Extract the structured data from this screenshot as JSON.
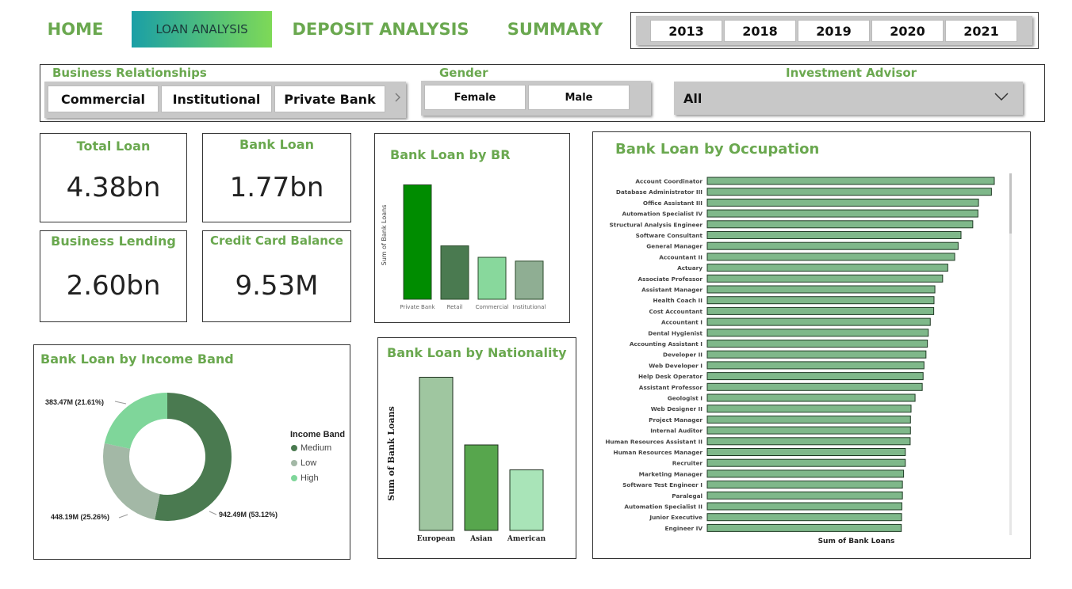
{
  "nav": {
    "home": "HOME",
    "loan_analysis": "LOAN ANALYSIS",
    "deposit_analysis": "DEPOSIT ANALYSIS",
    "summary": "SUMMARY"
  },
  "years": [
    "2013",
    "2018",
    "2019",
    "2020",
    "2021"
  ],
  "filters": {
    "business_relationships": {
      "label": "Business Relationships",
      "options": [
        "Commercial",
        "Institutional",
        "Private Bank"
      ]
    },
    "gender": {
      "label": "Gender",
      "options": [
        "Female",
        "Male"
      ]
    },
    "investment_advisor": {
      "label": "Investment Advisor",
      "value": "All"
    }
  },
  "kpis": {
    "total_loan": {
      "title": "Total Loan",
      "value": "4.38bn"
    },
    "bank_loan": {
      "title": "Bank Loan",
      "value": "1.77bn"
    },
    "business_lending": {
      "title": "Business Lending",
      "value": "2.60bn"
    },
    "credit_card_balance": {
      "title": "Credit Card Balance",
      "value": "9.53M"
    }
  },
  "chart_data": [
    {
      "id": "by_br",
      "type": "bar",
      "title": "Bank Loan by BR",
      "ylabel": "Sum of Bank Loans",
      "xlabel": "",
      "categories": [
        "Private Bank",
        "Retail",
        "Commercial",
        "Institutional"
      ],
      "values": [
        0.6,
        0.28,
        0.22,
        0.2
      ],
      "colors": [
        "#008c00",
        "#4a7a50",
        "#88d89c",
        "#8fae93"
      ]
    },
    {
      "id": "by_income_band",
      "type": "pie",
      "title": "Bank Loan by Income Band",
      "legend_title": "Income Band",
      "legend_position": "right",
      "labels": [
        "Medium",
        "Low",
        "High"
      ],
      "values": [
        942.49,
        448.19,
        383.47
      ],
      "percents": [
        53.12,
        25.26,
        21.61
      ],
      "data_labels": [
        "942.49M (53.12%)",
        "448.19M (25.26%)",
        "383.47M (21.61%)"
      ],
      "colors": [
        "#4a7a50",
        "#a3b8a6",
        "#7fd69a"
      ]
    },
    {
      "id": "by_nationality",
      "type": "bar",
      "title": "Bank Loan by Nationality",
      "ylabel": "Sum of Bank Loans",
      "xlabel": "",
      "categories": [
        "European",
        "Asian",
        "American"
      ],
      "values": [
        0.86,
        0.48,
        0.34
      ],
      "colors": [
        "#9fc6a0",
        "#57a64d",
        "#a9e4b8"
      ]
    },
    {
      "id": "by_occupation",
      "type": "bar",
      "orientation": "horizontal",
      "title": "Bank Loan by Occupation",
      "xlabel": "Sum of Bank Loans",
      "ylabel": "",
      "categories": [
        "Account Coordinator",
        "Database Administrator III",
        "Office Assistant III",
        "Automation Specialist IV",
        "Structural Analysis Engineer",
        "Software Consultant",
        "General Manager",
        "Accountant II",
        "Actuary",
        "Associate Professor",
        "Assistant Manager",
        "Health Coach II",
        "Cost Accountant",
        "Accountant I",
        "Dental Hygienist",
        "Accounting Assistant I",
        "Developer II",
        "Web Developer I",
        "Help Desk Operator",
        "Assistant Professor",
        "Geologist I",
        "Web Designer II",
        "Project Manager",
        "Internal Auditor",
        "Human Resources Assistant II",
        "Human Resources Manager",
        "Recruiter",
        "Marketing Manager",
        "Software Test Engineer I",
        "Paralegal",
        "Automation Specialist II",
        "Junior Executive",
        "Engineer IV"
      ],
      "values": [
        1.0,
        0.99,
        0.945,
        0.943,
        0.925,
        0.884,
        0.874,
        0.862,
        0.838,
        0.82,
        0.793,
        0.79,
        0.789,
        0.777,
        0.77,
        0.767,
        0.762,
        0.755,
        0.752,
        0.749,
        0.724,
        0.71,
        0.708,
        0.708,
        0.707,
        0.69,
        0.69,
        0.684,
        0.68,
        0.68,
        0.678,
        0.677,
        0.676
      ],
      "bar_color": "#7fb88a"
    }
  ]
}
